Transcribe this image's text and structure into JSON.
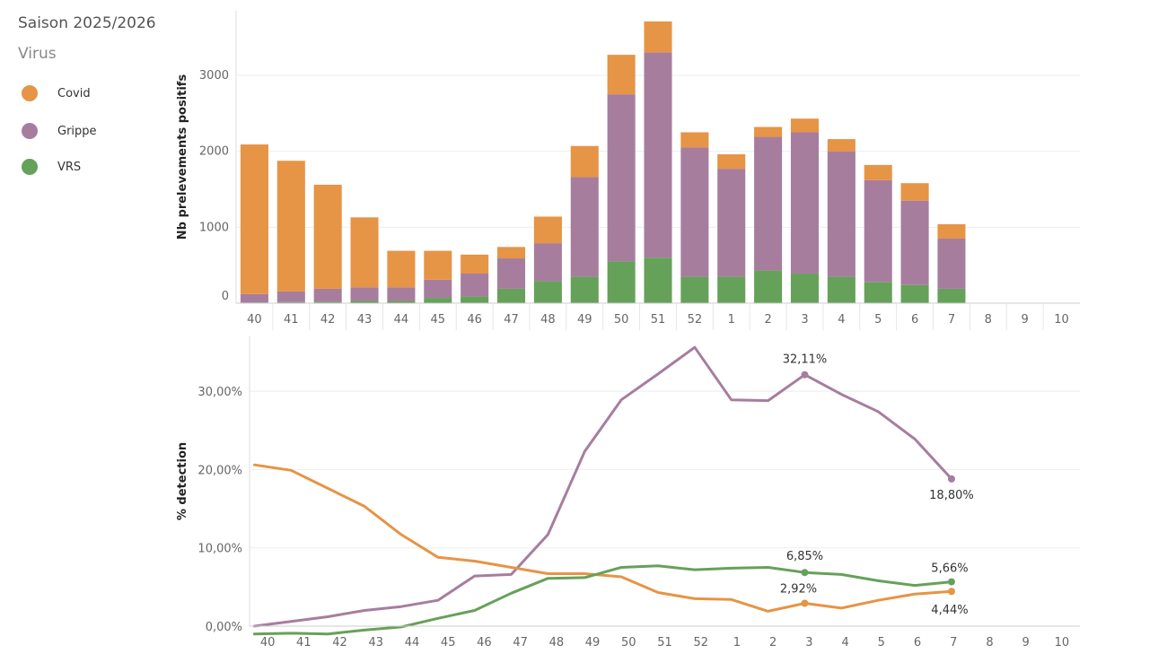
{
  "legend": {
    "title": "Saison 2025/2026",
    "subtitle": "Virus",
    "items": [
      {
        "name": "Covid",
        "color": "#E69445",
        "icon": "covid-dot-icon"
      },
      {
        "name": "Grippe",
        "color": "#A77D9E",
        "icon": "grippe-dot-icon"
      },
      {
        "name": "VRS",
        "color": "#66A15A",
        "icon": "vrs-dot-icon"
      }
    ]
  },
  "chart_data": [
    {
      "type": "bar",
      "stacked": true,
      "ylabel": "Nb prelevements positifs",
      "ylim": [
        0,
        3850
      ],
      "yticks": [
        0,
        1000,
        2000,
        3000
      ],
      "categories": [
        "40",
        "41",
        "42",
        "43",
        "44",
        "45",
        "46",
        "47",
        "48",
        "49",
        "50",
        "51",
        "52",
        "1",
        "2",
        "3",
        "4",
        "5",
        "6",
        "7",
        "8",
        "9",
        "10"
      ],
      "series": [
        {
          "name": "VRS",
          "color": "#66A15A",
          "values": [
            10,
            15,
            20,
            30,
            30,
            70,
            90,
            190,
            290,
            350,
            550,
            600,
            350,
            350,
            430,
            390,
            350,
            280,
            240,
            190,
            null,
            null,
            null
          ]
        },
        {
          "name": "Grippe",
          "color": "#A77D9E",
          "values": [
            110,
            140,
            170,
            180,
            180,
            240,
            300,
            400,
            500,
            1310,
            2200,
            2700,
            1700,
            1420,
            1760,
            1860,
            1650,
            1340,
            1110,
            660,
            null,
            null,
            null
          ]
        },
        {
          "name": "Covid",
          "color": "#E69445",
          "values": [
            1970,
            1720,
            1370,
            920,
            480,
            380,
            250,
            150,
            350,
            410,
            520,
            410,
            200,
            190,
            130,
            180,
            160,
            200,
            230,
            190,
            null,
            null,
            null
          ]
        }
      ]
    },
    {
      "type": "line",
      "ylabel": "% detection",
      "ylim": [
        0,
        37
      ],
      "yticks": [
        0,
        10,
        20,
        30
      ],
      "ytick_labels": [
        "0,00%",
        "10,00%",
        "20,00%",
        "30,00%"
      ],
      "categories": [
        "40",
        "41",
        "42",
        "43",
        "44",
        "45",
        "46",
        "47",
        "48",
        "49",
        "50",
        "51",
        "52",
        "1",
        "2",
        "3",
        "4",
        "5",
        "6",
        "7",
        "8",
        "9",
        "10"
      ],
      "series": [
        {
          "name": "Grippe",
          "color": "#A77D9E",
          "values": [
            0,
            0.6,
            1.2,
            2.0,
            2.5,
            3.3,
            6.4,
            6.6,
            11.7,
            22.3,
            28.9,
            32.2,
            35.6,
            28.9,
            28.8,
            32.11,
            29.6,
            27.4,
            23.9,
            18.8,
            null,
            null,
            null
          ]
        },
        {
          "name": "Covid",
          "color": "#E69445",
          "values": [
            20.6,
            19.9,
            17.6,
            15.3,
            11.7,
            8.8,
            8.3,
            7.5,
            6.7,
            6.7,
            6.3,
            4.3,
            3.5,
            3.4,
            1.9,
            2.92,
            2.3,
            3.3,
            4.1,
            4.44,
            null,
            null,
            null
          ]
        },
        {
          "name": "VRS",
          "color": "#66A15A",
          "values": [
            -1.0,
            -0.9,
            -1.0,
            -0.5,
            -0.1,
            1.0,
            2.0,
            4.2,
            6.1,
            6.2,
            7.5,
            7.7,
            7.2,
            7.4,
            7.5,
            6.85,
            6.6,
            5.8,
            5.2,
            5.66,
            null,
            null,
            null
          ]
        }
      ],
      "annotations": [
        {
          "series": "Grippe",
          "category": "3",
          "label": "32,11%"
        },
        {
          "series": "Grippe",
          "category": "7",
          "label": "18,80%"
        },
        {
          "series": "VRS",
          "category": "3",
          "label": "6,85%"
        },
        {
          "series": "VRS",
          "category": "7",
          "label": "5,66%"
        },
        {
          "series": "Covid",
          "category": "3",
          "label": "2,92%"
        },
        {
          "series": "Covid",
          "category": "7",
          "label": "4,44%"
        }
      ]
    }
  ]
}
